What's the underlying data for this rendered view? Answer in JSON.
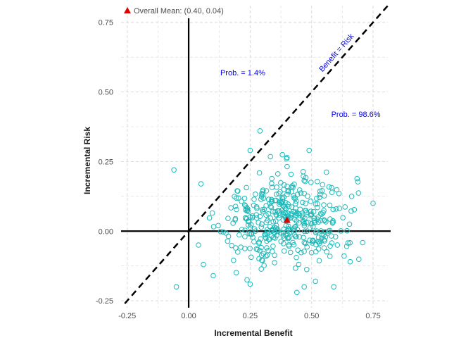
{
  "chart_data": {
    "type": "scatter",
    "xlabel": "Incremental Benefit",
    "ylabel": "Incremental Risk",
    "xlim": [
      -0.275,
      0.81
    ],
    "ylim": [
      -0.275,
      0.81
    ],
    "x_ticks": [
      -0.25,
      0.0,
      0.25,
      0.5,
      0.75
    ],
    "y_ticks": [
      -0.25,
      0.0,
      0.25,
      0.5,
      0.75
    ],
    "x_tick_labels": [
      "-0.25",
      "0.00",
      "0.25",
      "0.50",
      "0.75"
    ],
    "y_tick_labels": [
      "-0.25",
      "0.00",
      "0.25",
      "0.50",
      "0.75"
    ],
    "grid": true,
    "grid_style": "dashed",
    "point_color": "#1fb8b8",
    "mean_color": "#e00000",
    "mean_point": {
      "x": 0.4,
      "y": 0.04
    },
    "legend": {
      "label": "Overall Mean: (0.40, 0.04)",
      "placement": "top-left"
    },
    "reference_line": {
      "label": "Benefit = Risk",
      "slope": 1,
      "intercept": 0
    },
    "annotations": [
      {
        "text": "Prob. = 1.4%",
        "x": 0.22,
        "y": 0.56
      },
      {
        "text": "Prob. = 98.6%",
        "x": 0.68,
        "y": 0.41
      }
    ],
    "special_points": [
      {
        "x": -0.06,
        "y": 0.22
      },
      {
        "x": 0.05,
        "y": 0.17
      },
      {
        "x": -0.05,
        "y": -0.2
      },
      {
        "x": 0.04,
        "y": -0.05
      },
      {
        "x": 0.06,
        "y": -0.12
      },
      {
        "x": 0.29,
        "y": 0.36
      },
      {
        "x": 0.25,
        "y": 0.29
      },
      {
        "x": 0.49,
        "y": 0.29
      },
      {
        "x": 0.75,
        "y": 0.1
      },
      {
        "x": 0.47,
        "y": -0.2
      },
      {
        "x": 0.44,
        "y": -0.22
      },
      {
        "x": 0.59,
        "y": -0.2
      },
      {
        "x": 0.25,
        "y": -0.19
      },
      {
        "x": 0.1,
        "y": -0.16
      },
      {
        "x": 0.12,
        "y": 0.02
      }
    ],
    "cloud": {
      "n": 420,
      "x_mean": 0.4,
      "x_sd": 0.14,
      "y_mean": 0.045,
      "y_sd": 0.085,
      "x_range": [
        0.07,
        0.73
      ],
      "y_range": [
        -0.19,
        0.28
      ]
    }
  }
}
